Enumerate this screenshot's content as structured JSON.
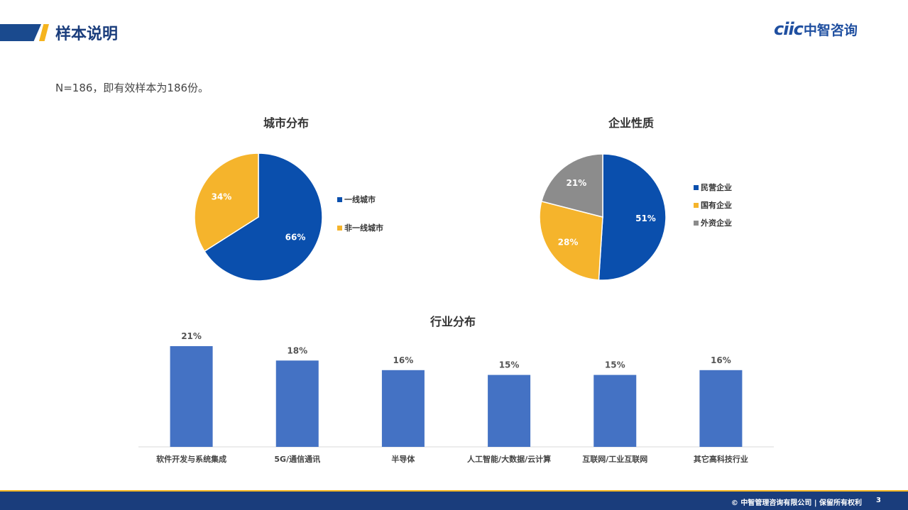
{
  "header": {
    "title": "样本说明",
    "logo_mark": "ciic",
    "logo_text": "中智咨询"
  },
  "sample_note": "N=186，即有效样本为186份。",
  "colors": {
    "blue": "#0a4fad",
    "yellow": "#f5b42c",
    "gray": "#8c8c8c",
    "bar": "#4472c4",
    "navy": "#1a3d7c"
  },
  "chart_data": [
    {
      "type": "pie",
      "title": "城市分布",
      "labels": [
        "一线城市",
        "非一线城市"
      ],
      "values": [
        66,
        34
      ],
      "value_labels": [
        "66%",
        "34%"
      ],
      "colors": [
        "#0a4fad",
        "#f5b42c"
      ],
      "legend": "right"
    },
    {
      "type": "pie",
      "title": "企业性质",
      "labels": [
        "民营企业",
        "国有企业",
        "外资企业"
      ],
      "values": [
        51,
        28,
        21
      ],
      "value_labels": [
        "51%",
        "28%",
        "21%"
      ],
      "colors": [
        "#0a4fad",
        "#f5b42c",
        "#8c8c8c"
      ],
      "legend": "right"
    },
    {
      "type": "bar",
      "title": "行业分布",
      "categories": [
        "软件开发与系统集成",
        "5G/通信通讯",
        "半导体",
        "人工智能/大数据/云计算",
        "互联网/工业互联网",
        "其它高科技行业"
      ],
      "values": [
        21,
        18,
        16,
        15,
        15,
        16
      ],
      "value_labels": [
        "21%",
        "18%",
        "16%",
        "15%",
        "15%",
        "16%"
      ],
      "ylim": [
        0,
        25
      ],
      "grid": false
    }
  ],
  "footer": {
    "copyright": "© 中智管理咨询有限公司 | 保留所有权利",
    "page_number": "3"
  }
}
